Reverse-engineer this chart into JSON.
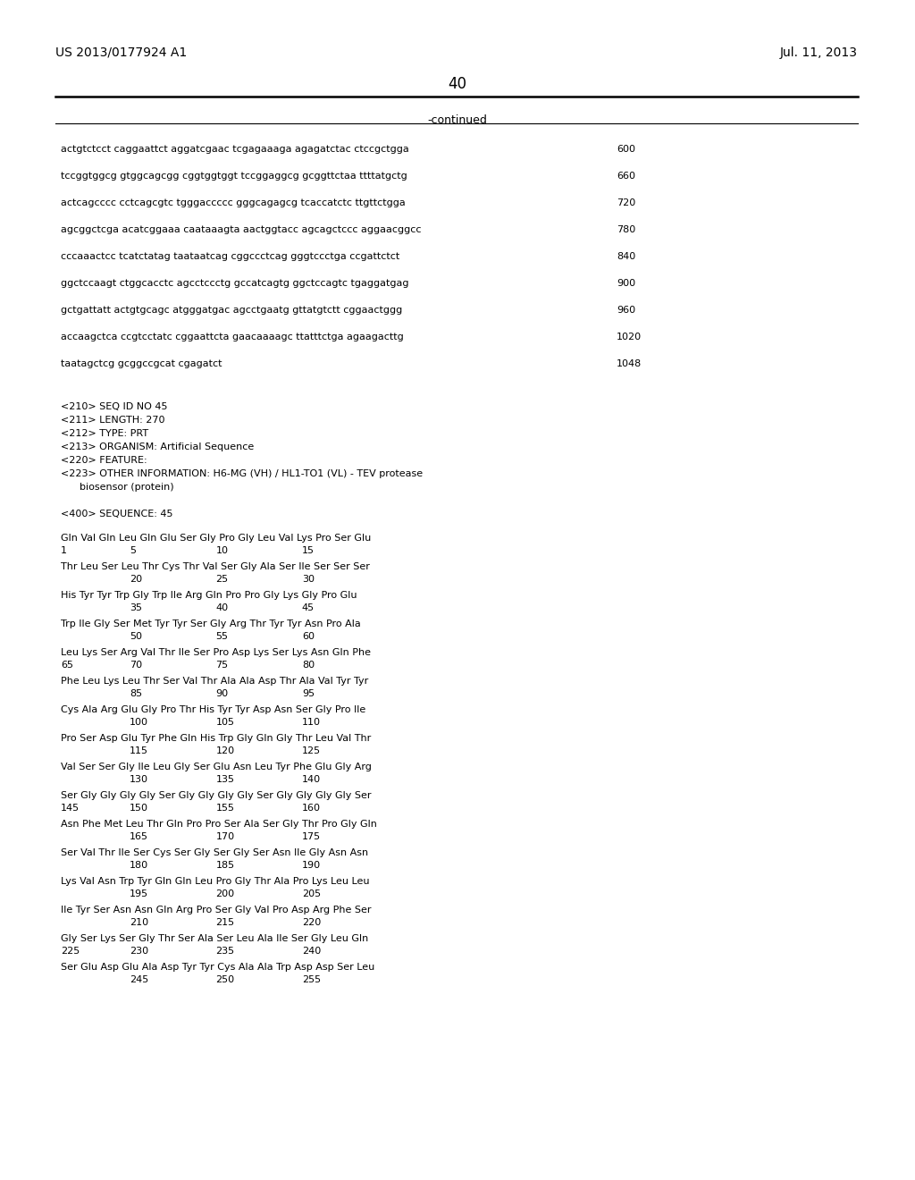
{
  "header_left": "US 2013/0177924 A1",
  "header_right": "Jul. 11, 2013",
  "page_number": "40",
  "continued_label": "-continued",
  "background_color": "#ffffff",
  "nucleotide_lines": [
    [
      "actgtctcct caggaattct aggatcgaac tcgagaaaga agagatctac ctccgctgga",
      "600"
    ],
    [
      "tccggtggcg gtggcagcgg cggtggtggt tccggaggcg gcggttctaa ttttatgctg",
      "660"
    ],
    [
      "actcagcccc cctcagcgtc tgggaccccc gggcagagcg tcaccatctc ttgttctgga",
      "720"
    ],
    [
      "agcggctcga acatcggaaa caataaagta aactggtacc agcagctccc aggaacggcc",
      "780"
    ],
    [
      "cccaaactcc tcatctatag taataatcag cggccctcag gggtccctga ccgattctct",
      "840"
    ],
    [
      "ggctccaagt ctggcacctc agcctccctg gccatcagtg ggctccagtc tgaggatgag",
      "900"
    ],
    [
      "gctgattatt actgtgcagc atgggatgac agcctgaatg gttatgtctt cggaactggg",
      "960"
    ],
    [
      "accaagctca ccgtcctatc cggaattcta gaacaaaagc ttatttctga agaagacttg",
      "1020"
    ],
    [
      "taatagctcg gcggccgcat cgagatct",
      "1048"
    ]
  ],
  "seq_info_lines": [
    "<210> SEQ ID NO 45",
    "<211> LENGTH: 270",
    "<212> TYPE: PRT",
    "<213> ORGANISM: Artificial Sequence",
    "<220> FEATURE:",
    "<223> OTHER INFORMATION: H6-MG (VH) / HL1-TO1 (VL) - TEV protease",
    "      biosensor (protein)",
    "",
    "<400> SEQUENCE: 45"
  ],
  "aa_blocks": [
    {
      "seq": "Gln Val Gln Leu Gln Glu Ser Gly Pro Gly Leu Val Lys Pro Ser Glu",
      "nums": [
        [
          0,
          "1"
        ],
        [
          4,
          "5"
        ],
        [
          9,
          "10"
        ],
        [
          14,
          "15"
        ]
      ]
    },
    {
      "seq": "Thr Leu Ser Leu Thr Cys Thr Val Ser Gly Ala Ser Ile Ser Ser Ser",
      "nums": [
        [
          4,
          "20"
        ],
        [
          9,
          "25"
        ],
        [
          14,
          "30"
        ]
      ]
    },
    {
      "seq": "His Tyr Tyr Trp Gly Trp Ile Arg Gln Pro Pro Gly Lys Gly Pro Glu",
      "nums": [
        [
          4,
          "35"
        ],
        [
          9,
          "40"
        ],
        [
          14,
          "45"
        ]
      ]
    },
    {
      "seq": "Trp Ile Gly Ser Met Tyr Tyr Ser Gly Arg Thr Tyr Tyr Asn Pro Ala",
      "nums": [
        [
          4,
          "50"
        ],
        [
          9,
          "55"
        ],
        [
          14,
          "60"
        ]
      ]
    },
    {
      "seq": "Leu Lys Ser Arg Val Thr Ile Ser Pro Asp Lys Ser Lys Asn Gln Phe",
      "nums": [
        [
          0,
          "65"
        ],
        [
          4,
          "70"
        ],
        [
          9,
          "75"
        ],
        [
          14,
          "80"
        ]
      ]
    },
    {
      "seq": "Phe Leu Lys Leu Thr Ser Val Thr Ala Ala Asp Thr Ala Val Tyr Tyr",
      "nums": [
        [
          4,
          "85"
        ],
        [
          9,
          "90"
        ],
        [
          14,
          "95"
        ]
      ]
    },
    {
      "seq": "Cys Ala Arg Glu Gly Pro Thr His Tyr Tyr Asp Asn Ser Gly Pro Ile",
      "nums": [
        [
          4,
          "100"
        ],
        [
          9,
          "105"
        ],
        [
          14,
          "110"
        ]
      ]
    },
    {
      "seq": "Pro Ser Asp Glu Tyr Phe Gln His Trp Gly Gln Gly Thr Leu Val Thr",
      "nums": [
        [
          4,
          "115"
        ],
        [
          9,
          "120"
        ],
        [
          14,
          "125"
        ]
      ]
    },
    {
      "seq": "Val Ser Ser Gly Ile Leu Gly Ser Glu Asn Leu Tyr Phe Glu Gly Arg",
      "nums": [
        [
          4,
          "130"
        ],
        [
          9,
          "135"
        ],
        [
          14,
          "140"
        ]
      ]
    },
    {
      "seq": "Ser Gly Gly Gly Gly Ser Gly Gly Gly Gly Ser Gly Gly Gly Gly Ser",
      "nums": [
        [
          0,
          "145"
        ],
        [
          4,
          "150"
        ],
        [
          9,
          "155"
        ],
        [
          14,
          "160"
        ]
      ]
    },
    {
      "seq": "Asn Phe Met Leu Thr Gln Pro Pro Ser Ala Ser Gly Thr Pro Gly Gln",
      "nums": [
        [
          4,
          "165"
        ],
        [
          9,
          "170"
        ],
        [
          14,
          "175"
        ]
      ]
    },
    {
      "seq": "Ser Val Thr Ile Ser Cys Ser Gly Ser Gly Ser Asn Ile Gly Asn Asn",
      "nums": [
        [
          4,
          "180"
        ],
        [
          9,
          "185"
        ],
        [
          14,
          "190"
        ]
      ]
    },
    {
      "seq": "Lys Val Asn Trp Tyr Gln Gln Leu Pro Gly Thr Ala Pro Lys Leu Leu",
      "nums": [
        [
          4,
          "195"
        ],
        [
          9,
          "200"
        ],
        [
          14,
          "205"
        ]
      ]
    },
    {
      "seq": "Ile Tyr Ser Asn Asn Gln Arg Pro Ser Gly Val Pro Asp Arg Phe Ser",
      "nums": [
        [
          4,
          "210"
        ],
        [
          9,
          "215"
        ],
        [
          14,
          "220"
        ]
      ]
    },
    {
      "seq": "Gly Ser Lys Ser Gly Thr Ser Ala Ser Leu Ala Ile Ser Gly Leu Gln",
      "nums": [
        [
          0,
          "225"
        ],
        [
          4,
          "230"
        ],
        [
          9,
          "235"
        ],
        [
          14,
          "240"
        ]
      ]
    },
    {
      "seq": "Ser Glu Asp Glu Ala Asp Tyr Tyr Cys Ala Ala Trp Asp Asp Ser Leu",
      "nums": [
        [
          4,
          "245"
        ],
        [
          9,
          "250"
        ],
        [
          14,
          "255"
        ]
      ]
    }
  ]
}
